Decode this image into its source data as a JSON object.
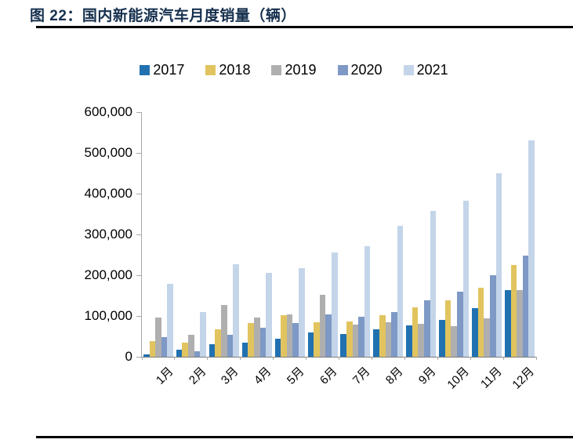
{
  "header": {
    "title": "图 22：国内新能源汽车月度销量（辆）"
  },
  "colors": {
    "title_text": "#16304E",
    "rule": "#000000",
    "axis_line": "#A8A8A8",
    "baseline": "#808080",
    "tick": "#A8A8A8",
    "label_text": "#000000"
  },
  "chart_data": {
    "type": "bar",
    "title": "国内新能源汽车月度销量（辆）",
    "categories": [
      "1月",
      "2月",
      "3月",
      "4月",
      "5月",
      "6月",
      "7月",
      "8月",
      "9月",
      "10月",
      "11月",
      "12月"
    ],
    "series": [
      {
        "name": "2017",
        "color": "#2171B0",
        "values": [
          5700,
          17600,
          31100,
          34400,
          45100,
          59000,
          56400,
          68000,
          77700,
          91000,
          119000,
          163000
        ]
      },
      {
        "name": "2018",
        "color": "#E1C45F",
        "values": [
          38500,
          34400,
          67800,
          81900,
          102000,
          84000,
          86000,
          101000,
          121000,
          138000,
          169000,
          225000
        ]
      },
      {
        "name": "2019",
        "color": "#AFAFAF",
        "values": [
          95700,
          52900,
          126000,
          97000,
          104000,
          152000,
          78000,
          85000,
          80000,
          75000,
          95000,
          163000
        ]
      },
      {
        "name": "2020",
        "color": "#7E99C5",
        "values": [
          48000,
          12900,
          53000,
          72000,
          82000,
          104000,
          98000,
          109000,
          138000,
          160000,
          200000,
          248000
        ]
      },
      {
        "name": "2021",
        "color": "#C4D5EA",
        "values": [
          179000,
          110000,
          226000,
          206000,
          217000,
          256000,
          271000,
          321000,
          357000,
          383000,
          450000,
          531000
        ]
      }
    ],
    "xlabel": "",
    "ylabel": "",
    "ylim": [
      0,
      600000
    ],
    "ytick_interval": 100000,
    "ytick_labels": [
      "0",
      "100,000",
      "200,000",
      "300,000",
      "400,000",
      "500,000",
      "600,000"
    ],
    "legend_position": "top",
    "grid": false
  }
}
